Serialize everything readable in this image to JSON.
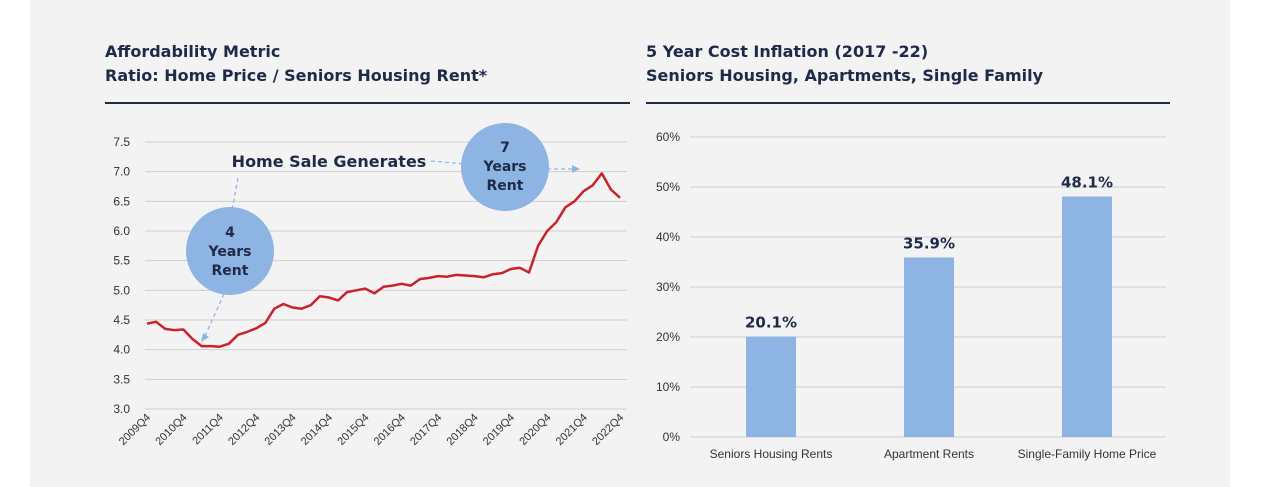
{
  "left_chart": {
    "title_line1": "Affordability Metric",
    "title_line2": "Ratio: Home Price / Seniors Housing Rent*",
    "annotation_label": "Home Sale Generates",
    "bubble_low": [
      "4",
      "Years",
      "Rent"
    ],
    "bubble_high": [
      "7",
      "Years",
      "Rent"
    ]
  },
  "right_chart": {
    "title_line1": "5 Year Cost Inflation (2017 -22)",
    "title_line2": "Seniors Housing, Apartments, Single Family"
  },
  "colors": {
    "line": "#c8232c",
    "bar": "#8db4e2",
    "bubble": "#8db4e2",
    "title": "#1f2a48",
    "grid": "#cfcfcf",
    "background": "#f3f3f3"
  },
  "chart_data": [
    {
      "type": "line",
      "title": "Affordability Metric",
      "subtitle": "Ratio: Home Price / Seniors Housing Rent*",
      "ylim": [
        3.0,
        7.5
      ],
      "yticks": [
        "3.0",
        "3.5",
        "4.0",
        "4.5",
        "5.0",
        "5.5",
        "6.0",
        "6.5",
        "7.0",
        "7.5"
      ],
      "xticks": [
        "2009Q4",
        "2010Q4",
        "2011Q4",
        "2012Q4",
        "2013Q4",
        "2014Q4",
        "2015Q4",
        "2016Q4",
        "2017Q4",
        "2018Q4",
        "2019Q4",
        "2020Q4",
        "2021Q4",
        "2022Q4"
      ],
      "grid": true,
      "series": [
        {
          "values": [
            4.44,
            4.47,
            4.35,
            4.33,
            4.34,
            4.18,
            4.06,
            4.06,
            4.05,
            4.1,
            4.25,
            4.3,
            4.36,
            4.45,
            4.69,
            4.77,
            4.71,
            4.69,
            4.75,
            4.9,
            4.88,
            4.83,
            4.97,
            5.0,
            5.03,
            4.95,
            5.06,
            5.08,
            5.11,
            5.08,
            5.19,
            5.21,
            5.24,
            5.23,
            5.26,
            5.25,
            5.24,
            5.22,
            5.27,
            5.29,
            5.36,
            5.38,
            5.3,
            5.75,
            6.0,
            6.15,
            6.4,
            6.5,
            6.67,
            6.77,
            6.97,
            6.7,
            6.56
          ]
        }
      ],
      "annotations": [
        "Home Sale Generates",
        "4 Years Rent",
        "7 Years Rent"
      ]
    },
    {
      "type": "bar",
      "title": "5 Year Cost Inflation (2017 -22)",
      "subtitle": "Seniors Housing, Apartments, Single Family",
      "categories": [
        "Seniors Housing Rents",
        "Apartment Rents",
        "Single-Family Home Price"
      ],
      "values": [
        20.1,
        35.9,
        48.1
      ],
      "value_labels": [
        "20.1%",
        "35.9%",
        "48.1%"
      ],
      "ylim": [
        0,
        60
      ],
      "yticks": [
        "0%",
        "10%",
        "20%",
        "30%",
        "40%",
        "50%",
        "60%"
      ],
      "grid": true
    }
  ]
}
